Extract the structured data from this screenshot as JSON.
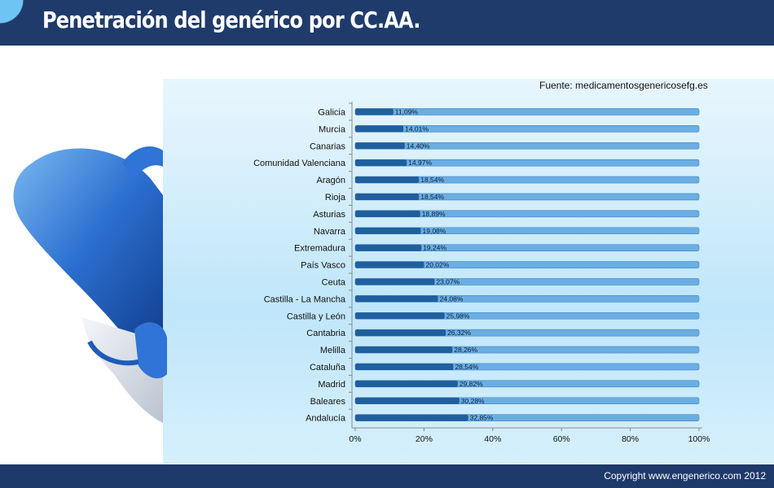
{
  "header": {
    "title": "Penetración del genérico por CC.AA."
  },
  "source": "Fuente: medicamentosgenericosefg.es",
  "footer": {
    "copyright": "Copyright www.engenerico.com 2012"
  },
  "colors": {
    "header_bg": "#1e3a6b",
    "bar_value": "#1f5f9e",
    "bar_track": "#6aaee3",
    "panel": "#c6e9fb"
  },
  "chart_data": {
    "type": "bar",
    "orientation": "horizontal",
    "stacked_to_100": true,
    "categories": [
      "Galicia",
      "Murcia",
      "Canarias",
      "Comunidad Valenciana",
      "Aragón",
      "Rioja",
      "Asturias",
      "Navarra",
      "Extremadura",
      "País Vasco",
      "Ceuta",
      "Castilla - La Mancha",
      "Castilla y León",
      "Cantabria",
      "Melilla",
      "Cataluña",
      "Madrid",
      "Baleares",
      "Andalucía"
    ],
    "values": [
      11.09,
      14.01,
      14.4,
      14.97,
      18.54,
      18.54,
      18.89,
      19.08,
      19.24,
      20.02,
      23.07,
      24.08,
      25.98,
      26.32,
      28.26,
      28.54,
      29.82,
      30.28,
      32.85
    ],
    "value_labels": [
      "11,09%",
      "14,01%",
      "14,40%",
      "14,97%",
      "18,54%",
      "18,54%",
      "18,89%",
      "19,08%",
      "19,24%",
      "20,02%",
      "23,07%",
      "24,08%",
      "25,98%",
      "26,32%",
      "28,26%",
      "28,54%",
      "29,82%",
      "30,28%",
      "32,85%"
    ],
    "xlim": [
      0,
      100
    ],
    "xticks": [
      "0%",
      "20%",
      "40%",
      "60%",
      "80%",
      "100%"
    ],
    "xlabel": "",
    "ylabel": "",
    "grid": false,
    "legend": "none"
  }
}
